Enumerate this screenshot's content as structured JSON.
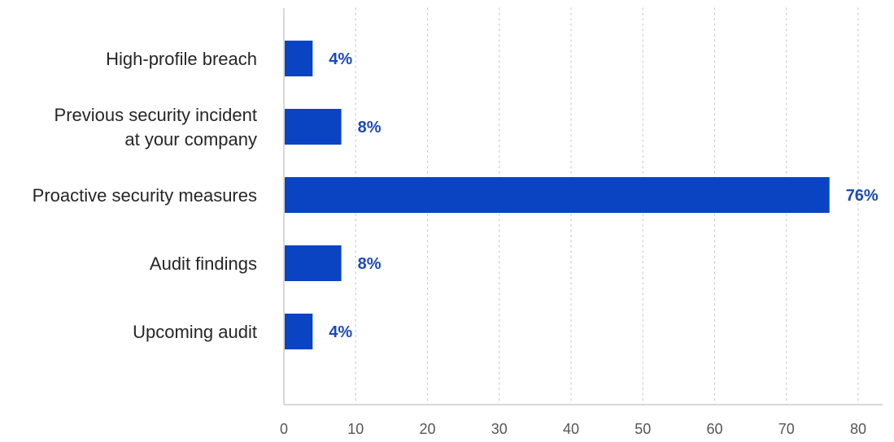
{
  "chart_data": {
    "type": "bar",
    "orientation": "horizontal",
    "categories": [
      [
        "High-profile breach"
      ],
      [
        "Previous security incident",
        "at your company"
      ],
      [
        "Proactive security measures"
      ],
      [
        "Audit findings"
      ],
      [
        "Upcoming audit"
      ]
    ],
    "values": [
      4,
      8,
      76,
      8,
      4
    ],
    "value_labels": [
      "4%",
      "8%",
      "76%",
      "8%",
      "4%"
    ],
    "xlim": [
      0,
      80
    ],
    "xticks": [
      0,
      10,
      20,
      30,
      40,
      50,
      60,
      70,
      80
    ],
    "grid": "vertical-dotted",
    "title": "",
    "xlabel": "",
    "ylabel": "",
    "colors": {
      "bar": "#0a44c2",
      "data_label": "#1a49bd",
      "grid": "#c8c8c8",
      "axis": "#cccccc"
    }
  }
}
